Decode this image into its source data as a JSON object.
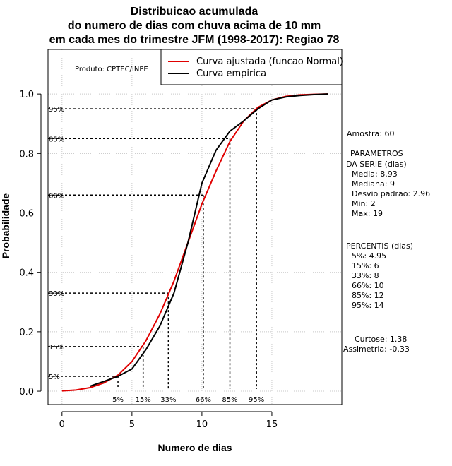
{
  "chart_data": {
    "type": "line",
    "title": [
      "Distribuicao acumulada",
      "do numero de dias com chuva acima de 10 mm",
      "em cada mes do trimestre JFM (1998-2017): Regiao 78"
    ],
    "xlabel": "Numero de dias",
    "ylabel": "Probabilidade",
    "xlim": [
      -1,
      20
    ],
    "ylim": [
      -0.045,
      1.15
    ],
    "xticks": [
      0,
      5,
      10,
      15
    ],
    "xtick_labels": [
      "0",
      "5",
      "10",
      "15"
    ],
    "yticks": [
      0.0,
      0.2,
      0.4,
      0.6,
      0.8,
      1.0
    ],
    "ytick_labels": [
      "0.0",
      "0.2",
      "0.4",
      "0.6",
      "0.8",
      "1.0"
    ],
    "grid": true,
    "credit": "Produto: CPTEC/INPE",
    "legend": {
      "position": "top-right",
      "entries": [
        {
          "label": "Curva ajustada (funcao Normal)",
          "color": "#e00000"
        },
        {
          "label": "Curva empirica",
          "color": "#000000"
        }
      ]
    },
    "series": [
      {
        "name": "Curva ajustada (funcao Normal)",
        "color": "#e00000",
        "x": [
          0,
          1,
          2,
          3,
          4,
          5,
          6,
          7,
          8,
          9,
          10,
          11,
          12,
          13,
          14,
          15,
          16,
          17,
          18,
          19
        ],
        "y": [
          0.001,
          0.004,
          0.012,
          0.028,
          0.054,
          0.1,
          0.17,
          0.26,
          0.37,
          0.5,
          0.63,
          0.74,
          0.84,
          0.91,
          0.955,
          0.98,
          0.992,
          0.997,
          0.999,
          1.0
        ]
      },
      {
        "name": "Curva empirica",
        "color": "#000000",
        "x": [
          2,
          3,
          4,
          5,
          6,
          7,
          8,
          9,
          10,
          11,
          12,
          13,
          14,
          15,
          16,
          17,
          18,
          19
        ],
        "y": [
          0.017,
          0.033,
          0.05,
          0.075,
          0.14,
          0.22,
          0.33,
          0.5,
          0.7,
          0.81,
          0.875,
          0.91,
          0.95,
          0.98,
          0.99,
          0.995,
          0.998,
          1.0
        ]
      }
    ],
    "percentile_markers": [
      {
        "label": "5%",
        "prob": 0.05,
        "x": 4.0
      },
      {
        "label": "15%",
        "prob": 0.15,
        "x": 5.8
      },
      {
        "label": "33%",
        "prob": 0.33,
        "x": 7.6
      },
      {
        "label": "66%",
        "prob": 0.66,
        "x": 10.1
      },
      {
        "label": "85%",
        "prob": 0.85,
        "x": 12.0
      },
      {
        "label": "95%",
        "prob": 0.95,
        "x": 13.9
      }
    ]
  },
  "side_panel": {
    "amostra": "Amostra: 60",
    "parametros_title": "PARAMETROS",
    "parametros_sub": "DA SERIE (dias)",
    "parametros": [
      "Media: 8.93",
      "Mediana: 9",
      "Desvio padrao: 2.96",
      "Min: 2",
      "Max: 19"
    ],
    "percentis_title": "PERCENTIS (dias)",
    "percentis": [
      "5%: 4.95",
      "15%: 6",
      "33%: 8",
      "66%: 10",
      "85%: 12",
      "95%: 14"
    ],
    "curtose": "Curtose: 1.38",
    "assimetria": "Assimetria: -0.33"
  }
}
